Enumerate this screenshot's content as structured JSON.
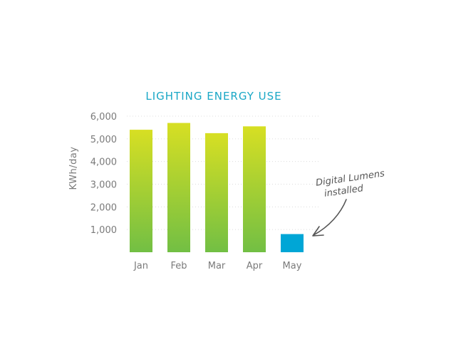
{
  "chart_data": {
    "type": "bar",
    "title": "LIGHTING ENERGY USE",
    "xlabel": "",
    "ylabel": "KWh/day",
    "categories": [
      "Jan",
      "Feb",
      "Mar",
      "Apr",
      "May"
    ],
    "values": [
      5400,
      5700,
      5250,
      5550,
      800
    ],
    "ylim": [
      0,
      6000
    ],
    "yticks": [
      1000,
      2000,
      3000,
      4000,
      5000,
      6000
    ],
    "ytick_labels": [
      "1,000",
      "2,000",
      "3,000",
      "4,000",
      "5,000",
      "6,000"
    ],
    "grid": true,
    "colors": {
      "bar_top": "#d7df23",
      "bar_bottom": "#72bf44",
      "highlight": "#00a6d6",
      "title": "#19a7c6"
    },
    "highlight_category": "May",
    "annotation": {
      "lines": [
        "Digital Lumens",
        "installed"
      ],
      "target": "May"
    }
  }
}
